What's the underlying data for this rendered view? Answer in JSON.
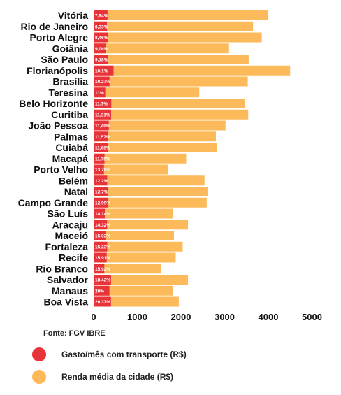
{
  "chart_data": {
    "type": "bar",
    "orientation": "horizontal",
    "categories": [
      "Vitória",
      "Rio de Janeiro",
      "Porto Alegre",
      "Goiânia",
      "São Paulo",
      "Florianópolis",
      "Brasília",
      "Teresina",
      "Belo Horizonte",
      "Curitiba",
      "João Pessoa",
      "Palmas",
      "Cuiabá",
      "Macapá",
      "Porto Velho",
      "Belém",
      "Natal",
      "Campo Grande",
      "São Luís",
      "Aracaju",
      "Maceió",
      "Fortaleza",
      "Recife",
      "Rio Branco",
      "Salvador",
      "Manaus",
      "Boa Vista"
    ],
    "series": [
      {
        "name": "Renda média da cidade (R$)",
        "color": "#FDBA5A",
        "values": [
          4000,
          3650,
          3850,
          3100,
          3550,
          4500,
          3530,
          2420,
          3460,
          3540,
          3020,
          2800,
          2830,
          2120,
          1710,
          2540,
          2610,
          2590,
          1810,
          2160,
          1840,
          2040,
          1880,
          1540,
          2160,
          1810,
          1950
        ]
      },
      {
        "name": "Gasto/mês com transporte (R$)",
        "color": "#E8333A",
        "values": [
          317,
          304,
          327,
          281,
          326,
          455,
          363,
          266,
          405,
          400,
          347,
          324,
          331,
          250,
          236,
          310,
          332,
          337,
          256,
          309,
          276,
          311,
          298,
          245,
          398,
          362,
          397
        ],
        "labels": [
          "7,94%",
          "8,33%",
          "8,46%",
          "9,06%",
          "9,18%",
          "10,1%",
          "10,27%",
          "11%",
          "11,7%",
          "11,31%",
          "11,49%",
          "11,57%",
          "11,68%",
          "11,75%",
          "13,78%",
          "12,2%",
          "12,7%",
          "12,99%",
          "14,14%",
          "14,32%",
          "15,02%",
          "15,23%",
          "15,91%",
          "15,92%",
          "18,42%",
          "20%",
          "20,37%"
        ]
      }
    ],
    "x_ticks": [
      "0",
      "1000",
      "2000",
      "3000",
      "4000",
      "5000"
    ],
    "xlim": [
      0,
      5000
    ],
    "grid": false,
    "legend_position": "bottom-left",
    "source": "Fonte: FGV IBRE"
  }
}
